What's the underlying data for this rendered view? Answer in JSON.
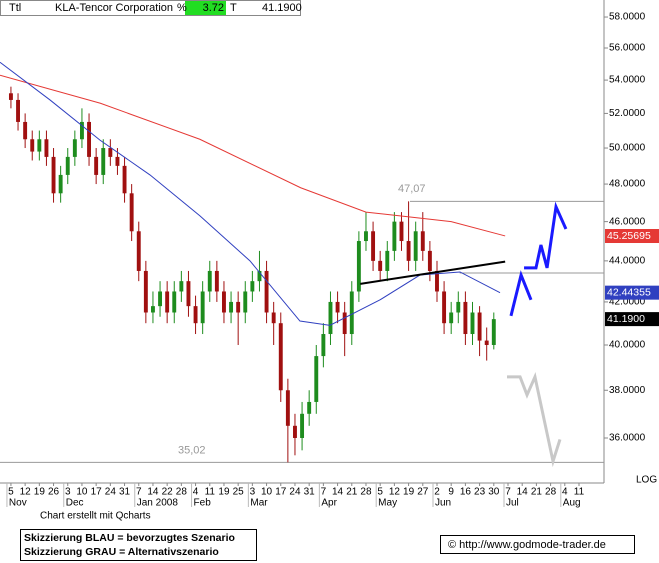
{
  "header": {
    "code": "Ttl",
    "name": "KLA-Tencor Corporation",
    "pct_label": "%",
    "pct": 3.72,
    "last_label": "T",
    "last": "41.1900"
  },
  "footer": {
    "credit": "Chart erstellt mit Qcharts",
    "legend": [
      "Skizzierung BLAU = bevorzugtes Szenario",
      "Skizzierung GRAU = Alternativszenario"
    ],
    "source": "© http://www.godmode-trader.de"
  },
  "chart_data": {
    "type": "candlestick",
    "log_scale": true,
    "xlim": [
      -0.77,
      41.76
    ],
    "ylim": [
      34.21,
      59.13
    ],
    "yticks": [
      {
        "value": 58,
        "label": "58.0000"
      },
      {
        "value": 56,
        "label": "56.0000"
      },
      {
        "value": 54,
        "label": "54.0000"
      },
      {
        "value": 52,
        "label": "52.0000"
      },
      {
        "value": 50,
        "label": "50.0000"
      },
      {
        "value": 48,
        "label": "48.0000"
      },
      {
        "value": 46,
        "label": "46.0000"
      },
      {
        "value": 44,
        "label": "44.0000"
      },
      {
        "value": 42,
        "label": "42.0000"
      },
      {
        "value": 40,
        "label": "40.0000"
      },
      {
        "value": 38,
        "label": "38.0000"
      },
      {
        "value": 36,
        "label": "36.0000"
      }
    ],
    "y_scale_label": "LOG",
    "xticks": [
      {
        "value": 0,
        "label": "5"
      },
      {
        "value": 1,
        "label": "12"
      },
      {
        "value": 2,
        "label": "19"
      },
      {
        "value": 3,
        "label": "26"
      },
      {
        "value": 4,
        "label": "3"
      },
      {
        "value": 5,
        "label": "10"
      },
      {
        "value": 6,
        "label": "17"
      },
      {
        "value": 7,
        "label": "24"
      },
      {
        "value": 8,
        "label": "31"
      },
      {
        "value": 9,
        "label": "7"
      },
      {
        "value": 10,
        "label": "14"
      },
      {
        "value": 11,
        "label": "22"
      },
      {
        "value": 12,
        "label": "28"
      },
      {
        "value": 13,
        "label": "4"
      },
      {
        "value": 14,
        "label": "11"
      },
      {
        "value": 15,
        "label": "19"
      },
      {
        "value": 16,
        "label": "25"
      },
      {
        "value": 17,
        "label": "3"
      },
      {
        "value": 18,
        "label": "10"
      },
      {
        "value": 19,
        "label": "17"
      },
      {
        "value": 20,
        "label": "24"
      },
      {
        "value": 21,
        "label": "31"
      },
      {
        "value": 22,
        "label": "7"
      },
      {
        "value": 23,
        "label": "14"
      },
      {
        "value": 24,
        "label": "21"
      },
      {
        "value": 25,
        "label": "28"
      },
      {
        "value": 26,
        "label": "5"
      },
      {
        "value": 27,
        "label": "12"
      },
      {
        "value": 28,
        "label": "19"
      },
      {
        "value": 29,
        "label": "27"
      },
      {
        "value": 30,
        "label": "2"
      },
      {
        "value": 31,
        "label": "9"
      },
      {
        "value": 32,
        "label": "16"
      },
      {
        "value": 33,
        "label": "23"
      },
      {
        "value": 34,
        "label": "30"
      },
      {
        "value": 35,
        "label": "7"
      },
      {
        "value": 36,
        "label": "14"
      },
      {
        "value": 37,
        "label": "21"
      },
      {
        "value": 38,
        "label": "28"
      },
      {
        "value": 39,
        "label": "4"
      },
      {
        "value": 40,
        "label": "11"
      }
    ],
    "months": [
      {
        "value": 0,
        "label": "Nov"
      },
      {
        "value": 4,
        "label": "Dec"
      },
      {
        "value": 9,
        "label": "Jan 2008"
      },
      {
        "value": 13,
        "label": "Feb"
      },
      {
        "value": 17,
        "label": "Mar"
      },
      {
        "value": 22,
        "label": "Apr"
      },
      {
        "value": 26,
        "label": "May"
      },
      {
        "value": 30,
        "label": "Jun"
      },
      {
        "value": 35,
        "label": "Jul"
      },
      {
        "value": 39,
        "label": "Aug"
      }
    ],
    "up_color": "#1e8c1e",
    "down_color": "#a01010",
    "x": [
      0,
      0.5,
      1,
      1.5,
      2,
      2.5,
      3,
      3.5,
      4,
      4.5,
      5,
      5.5,
      6,
      6.5,
      7,
      7.5,
      8,
      8.5,
      9,
      9.5,
      10,
      10.5,
      11,
      11.5,
      12,
      12.5,
      13,
      13.5,
      14,
      14.5,
      15,
      15.5,
      16,
      16.5,
      17,
      17.5,
      18,
      18.5,
      19,
      19.5,
      20,
      20.5,
      21,
      21.5,
      22,
      22.5,
      23,
      23.5,
      24,
      24.5,
      25,
      25.5,
      26,
      26.5,
      27,
      27.5,
      28,
      28.5,
      29,
      29.5,
      30,
      30.5,
      31,
      31.5,
      32,
      32.5,
      33,
      33.5,
      34
    ],
    "open": [
      53.2,
      52.8,
      51.5,
      50.5,
      49.8,
      50.5,
      49.5,
      47.5,
      48.5,
      49.5,
      50.5,
      51.5,
      49.5,
      48.5,
      50,
      49.5,
      49,
      47.5,
      45.5,
      43.5,
      41.5,
      41.8,
      42.5,
      41.5,
      42.5,
      43,
      41.8,
      41,
      42.5,
      43.5,
      42.5,
      41.5,
      42,
      41.5,
      42.5,
      43,
      43.5,
      41.5,
      41,
      38,
      36.5,
      36,
      37,
      37.5,
      39.5,
      40.5,
      42,
      41.5,
      40.5,
      42.5,
      45,
      45.5,
      44,
      43.5,
      44.5,
      46,
      45,
      44,
      45.5,
      44.5,
      43.5,
      42.5,
      41,
      41.5,
      42,
      40.5,
      41.5,
      40.2,
      40
    ],
    "high": [
      53.6,
      53.2,
      52,
      51,
      51,
      51,
      50,
      49,
      50,
      51,
      52.3,
      52,
      50,
      50.5,
      50.5,
      50,
      49.5,
      48,
      46,
      44,
      42.5,
      43,
      43,
      43,
      43.5,
      43.5,
      42.3,
      43,
      44,
      44,
      43,
      42.5,
      42.5,
      43,
      43.5,
      44.5,
      44,
      42,
      41.5,
      38.5,
      37,
      37.5,
      38,
      40,
      41,
      42.5,
      42.5,
      42,
      43,
      45.5,
      46.5,
      46,
      44.5,
      45,
      46.5,
      46.5,
      47.07,
      46,
      46.5,
      45,
      44,
      43,
      42,
      42.5,
      42.5,
      42,
      41.8,
      40.8,
      41.5
    ],
    "low": [
      52.3,
      51,
      50,
      49.3,
      49.3,
      49,
      47,
      47,
      48,
      49,
      50,
      49,
      48,
      48,
      49,
      48.5,
      47,
      45,
      43,
      41,
      41,
      41.3,
      41,
      41,
      42,
      41.3,
      40.5,
      40.5,
      42,
      42,
      41,
      41,
      40,
      41,
      42,
      42.5,
      41,
      40,
      37.5,
      35.02,
      35.3,
      35.5,
      36.5,
      37,
      39,
      40,
      41,
      39.5,
      40,
      42,
      44.5,
      43.5,
      43,
      43,
      44,
      44.5,
      43.5,
      43.5,
      44,
      43,
      42,
      40.5,
      40.5,
      41,
      40,
      40,
      39.5,
      39.3,
      39.8
    ],
    "close": [
      52.8,
      51.5,
      50.5,
      49.8,
      50.5,
      49.5,
      47.5,
      48.5,
      49.5,
      50.5,
      51.5,
      49.5,
      48.5,
      50,
      49.5,
      49,
      47.5,
      45.5,
      43.5,
      41.5,
      41.8,
      42.5,
      41.5,
      42.5,
      43,
      41.8,
      41,
      42.5,
      43.5,
      42.5,
      41.5,
      42,
      41.5,
      42.5,
      43,
      43.5,
      41.5,
      41,
      38,
      36.5,
      36,
      37,
      37.5,
      39.5,
      40.5,
      42,
      41.5,
      40.5,
      42.5,
      45,
      45.5,
      44,
      43.5,
      44.5,
      46,
      45,
      44,
      45.5,
      44.5,
      43.5,
      42.5,
      41,
      41.5,
      42,
      40.5,
      41.5,
      40.2,
      40,
      41.19
    ],
    "lines": [
      {
        "color": "#e53935",
        "width": 1,
        "x": [
          -0.77,
          6.3,
          13.3,
          20.4,
          25,
          27.4,
          31,
          34.8
        ],
        "values": [
          54.3,
          52.6,
          50.5,
          47.8,
          46.5,
          46.3,
          46,
          45.26
        ]
      },
      {
        "color": "#3040c0",
        "width": 1,
        "x": [
          -0.77,
          2.75,
          6.27,
          9.79,
          13.31,
          16.83,
          20.35,
          22.46,
          25.99,
          28.8,
          31.62,
          34.44
        ],
        "values": [
          55.1,
          52.8,
          50.45,
          48.5,
          46.3,
          44,
          41.1,
          40.9,
          42.1,
          43.3,
          43.45,
          42.44
        ]
      },
      {
        "color": "#000000",
        "width": 2,
        "x": [
          24.6,
          34.8
        ],
        "values": [
          42.87,
          43.96
        ]
      },
      {
        "color": "#1a1aff",
        "width": 3,
        "x": [
          35.21,
          35.92,
          36.62,
          null,
          36.13,
          36.97,
          37.32,
          37.75,
          38.38,
          39.08
        ],
        "values": [
          41.34,
          43.3,
          42.1,
          null,
          43.65,
          43.65,
          44.8,
          43.65,
          46.78,
          45.62
        ]
      },
      {
        "color": "#c8c8c8",
        "width": 3,
        "x": [
          34.93,
          35.85,
          36.34,
          36.9,
          38.17,
          38.66
        ],
        "values": [
          38.58,
          38.58,
          37.8,
          38.58,
          35.06,
          35.94
        ]
      }
    ],
    "levels": [
      {
        "value": 47.07,
        "from": 28.1,
        "label": "47,07"
      },
      {
        "value": 43.4,
        "from": 31.6
      },
      {
        "value": 35.02,
        "from": -0.77,
        "label": "35,02"
      }
    ],
    "price_tags": [
      {
        "value": 45.25695,
        "color": "#e53935"
      },
      {
        "value": 42.44355,
        "color": "#3040c0"
      },
      {
        "value": 41.19,
        "label": "41.1900",
        "color": "#000000"
      }
    ]
  }
}
